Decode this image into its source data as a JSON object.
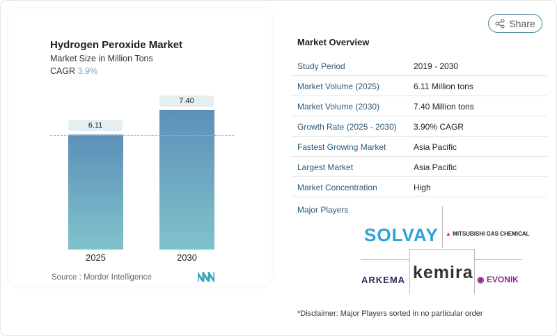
{
  "header": {
    "share_label": "Share"
  },
  "card": {
    "title": "Hydrogen Peroxide Market",
    "subtitle": "Market Size in Million Tons",
    "cagr_label": "CAGR",
    "cagr_value": "3.9%",
    "source": "Source :  Mordor Intelligence"
  },
  "chart_data": {
    "type": "bar",
    "categories": [
      "2025",
      "2030"
    ],
    "values": [
      6.11,
      7.4
    ],
    "data_labels": [
      "6.11",
      "7.40"
    ],
    "ylim": [
      0,
      8
    ],
    "grid": false,
    "colors": {
      "bar_top": "#5c8fb8",
      "bar_bottom": "#80c3cb"
    }
  },
  "overview": {
    "title": "Market Overview",
    "rows": [
      {
        "k": "Study Period",
        "v": "2019 - 2030"
      },
      {
        "k": "Market Volume (2025)",
        "v": "6.11 Million tons"
      },
      {
        "k": "Market Volume (2030)",
        "v": "7.40 Million tons"
      },
      {
        "k": "Growth Rate (2025 - 2030)",
        "v": "3.90% CAGR"
      },
      {
        "k": "Fastest Growing Market",
        "v": "Asia Pacific"
      },
      {
        "k": "Largest Market",
        "v": "Asia Pacific"
      },
      {
        "k": "Market Concentration",
        "v": "High"
      }
    ],
    "players_label": "Major Players",
    "players": [
      "SOLVAY",
      "MITSUBISHI GAS CHEMICAL",
      "ARKEMA",
      "kemira",
      "EVONIK"
    ],
    "disclaimer": "*Disclaimer: Major Players sorted in no particular order"
  }
}
